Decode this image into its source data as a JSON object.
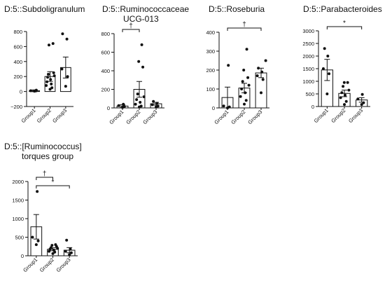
{
  "chart_data": [
    {
      "type": "bar",
      "title": "D:5::Subdoligranulum",
      "title_lines": [
        "D:5::Subdoligranulum"
      ],
      "categories": [
        "Group1",
        "Group2",
        "Group3"
      ],
      "values": [
        10,
        200,
        320
      ],
      "error": [
        12,
        65,
        140
      ],
      "points": [
        [
          5,
          18,
          10,
          8
        ],
        [
          30,
          50,
          80,
          100,
          130,
          160,
          190,
          210,
          230,
          250,
          620,
          640
        ],
        [
          70,
          200,
          300,
          700,
          770
        ]
      ],
      "ylim": [
        -200,
        800
      ],
      "yticks": [
        "−200",
        "0",
        "200",
        "400",
        "600",
        "800"
      ],
      "yticks_values": [
        -200,
        0,
        200,
        400,
        600,
        800
      ],
      "annotations": []
    },
    {
      "type": "bar",
      "title": "D:5::Ruminococcaceae UCG-013",
      "title_lines": [
        "D:5::Ruminococcaceae",
        "UCG-013"
      ],
      "categories": [
        "Group1",
        "Group2",
        "Group3"
      ],
      "values": [
        20,
        200,
        45
      ],
      "error": [
        15,
        85,
        15
      ],
      "points": [
        [
          5,
          15,
          25,
          40
        ],
        [
          10,
          20,
          40,
          60,
          90,
          120,
          150,
          440,
          500,
          680
        ],
        [
          10,
          20,
          35,
          50,
          70
        ]
      ],
      "ylim": [
        0,
        800
      ],
      "yticks": [
        "0",
        "200",
        "400",
        "600",
        "800"
      ],
      "yticks_values": [
        0,
        200,
        400,
        600,
        800
      ],
      "annotations": [
        {
          "label": "†",
          "from": 0,
          "to": 1
        }
      ]
    },
    {
      "type": "bar",
      "title": "D:5::Roseburia",
      "title_lines": [
        "D:5::Roseburia"
      ],
      "categories": [
        "Group1",
        "Group2",
        "Group3"
      ],
      "values": [
        55,
        105,
        185
      ],
      "error": [
        55,
        25,
        25
      ],
      "points": [
        [
          0,
          5,
          10,
          225
        ],
        [
          20,
          40,
          60,
          80,
          100,
          120,
          140,
          160,
          200,
          310
        ],
        [
          80,
          150,
          170,
          190,
          210,
          250
        ]
      ],
      "ylim": [
        0,
        400
      ],
      "yticks": [
        "0",
        "100",
        "200",
        "300",
        "400"
      ],
      "yticks_values": [
        0,
        100,
        200,
        300,
        400
      ],
      "annotations": [
        {
          "label": "†",
          "from": 0,
          "to": 2
        }
      ]
    },
    {
      "type": "bar",
      "title": "D:5::Parabacteroides",
      "title_lines": [
        "D:5::Parabacteroides"
      ],
      "categories": [
        "Group1",
        "Group2",
        "Group3"
      ],
      "values": [
        1450,
        520,
        260
      ],
      "error": [
        420,
        130,
        90
      ],
      "points": [
        [
          500,
          1300,
          1500,
          2000,
          2300
        ],
        [
          80,
          200,
          350,
          450,
          550,
          650,
          800,
          950,
          950
        ],
        [
          80,
          150,
          300,
          480
        ]
      ],
      "ylim": [
        0,
        3000
      ],
      "yticks": [
        "0",
        "500",
        "1000",
        "1500",
        "2000",
        "2500",
        "3000"
      ],
      "yticks_values": [
        0,
        500,
        1000,
        1500,
        2000,
        2500,
        3000
      ],
      "annotations": [
        {
          "label": "*",
          "from": 0,
          "to": 2
        }
      ]
    },
    {
      "type": "bar",
      "title": "D:5::[Ruminococcus] torques group",
      "title_lines": [
        "D:5::[Ruminococcus]",
        "torques group"
      ],
      "categories": [
        "Group1",
        "Group2",
        "Group3"
      ],
      "values": [
        780,
        175,
        150
      ],
      "error": [
        330,
        40,
        70
      ],
      "points": [
        [
          300,
          400,
          500,
          1730
        ],
        [
          60,
          100,
          120,
          150,
          180,
          200,
          220,
          250,
          280,
          300
        ],
        [
          30,
          80,
          120,
          180,
          420
        ]
      ],
      "ylim": [
        0,
        2000
      ],
      "yticks": [
        "0",
        "500",
        "1000",
        "1500",
        "2000"
      ],
      "yticks_values": [
        0,
        500,
        1000,
        1500,
        2000
      ],
      "annotations": [
        {
          "label": "†",
          "from": 0,
          "to": 1
        },
        {
          "label": "*",
          "from": 0,
          "to": 2
        }
      ]
    }
  ]
}
